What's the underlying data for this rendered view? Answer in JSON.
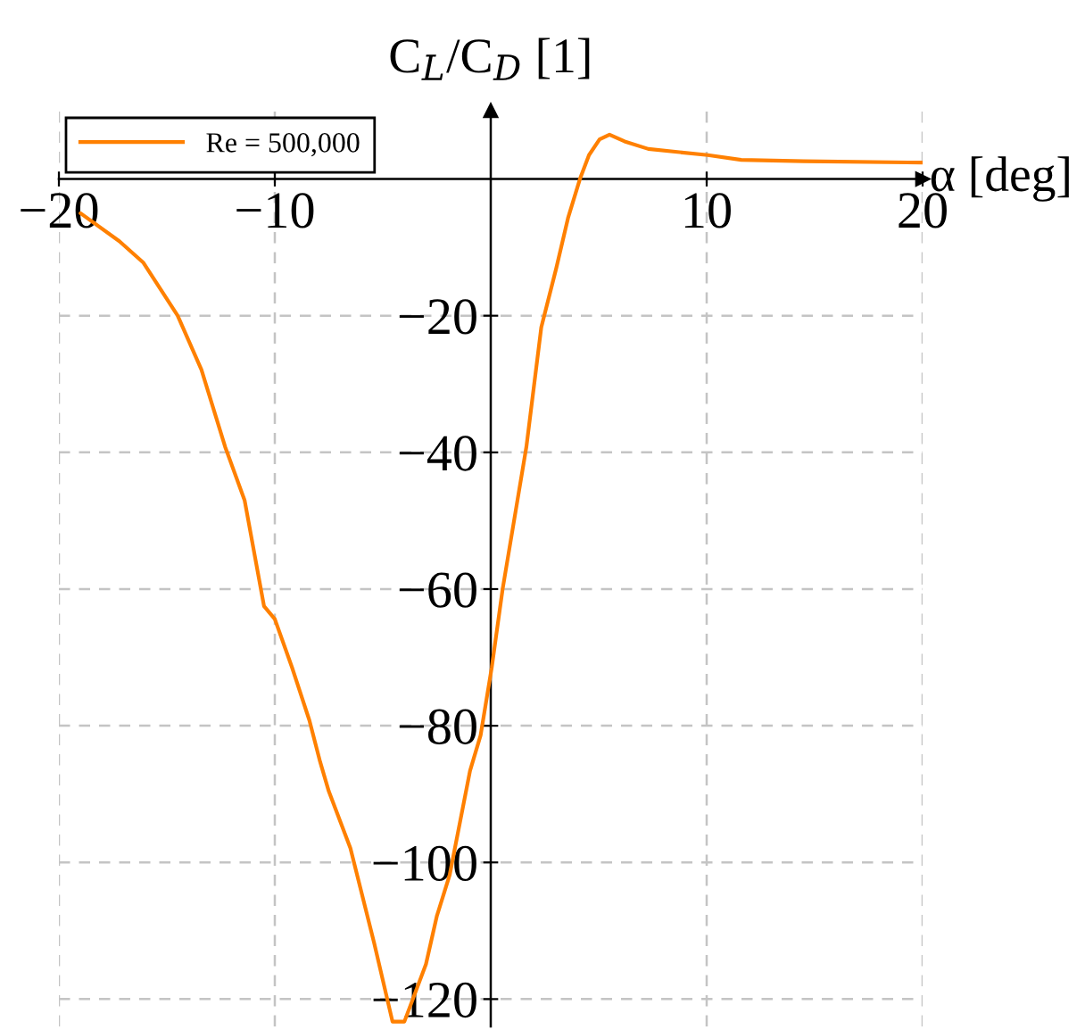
{
  "chart_data": {
    "type": "line",
    "xlabel": "α [deg]",
    "ylabel": "C$_{L}$/C$_{D}$ [1]",
    "series": [
      {
        "name": "Re = 500,000",
        "color": "#ff8000",
        "x": [
          -19.0,
          -17.2,
          -16.1,
          -14.5,
          -13.4,
          -12.3,
          -11.4,
          -10.5,
          -10.0,
          -9.2,
          -8.4,
          -7.9,
          -7.5,
          -6.5,
          -5.4,
          -4.55,
          -4.0,
          -3.0,
          -2.5,
          -1.9,
          -0.96,
          -0.47,
          0.05,
          0.55,
          1.65,
          2.34,
          3.03,
          3.58,
          4.13,
          4.55,
          5.04,
          5.5,
          6.2,
          7.3,
          10.05,
          11.6,
          14.5,
          20.0
        ],
        "values": [
          -5.0,
          -9.1,
          -12.2,
          -20,
          -27.9,
          -39.2,
          -47,
          -62.5,
          -64.4,
          -71.5,
          -79.2,
          -85.3,
          -89.6,
          -97.9,
          -111.8,
          -123.3,
          -123.3,
          -114.9,
          -107.9,
          -101.8,
          -86.6,
          -81.4,
          -71.4,
          -60,
          -39.2,
          -21.7,
          -13.1,
          -5.7,
          0,
          3.5,
          5.8,
          6.5,
          5.5,
          4.4,
          3.5,
          2.8,
          2.6,
          2.4
        ]
      }
    ],
    "xlim": [
      -20,
      20
    ],
    "ylim": [
      -124,
      10
    ],
    "xticks": [
      {
        "value": -20,
        "label": "−20"
      },
      {
        "value": -10,
        "label": "−10"
      },
      {
        "value": 10,
        "label": "10"
      },
      {
        "value": 20,
        "label": "20"
      }
    ],
    "yticks": [
      {
        "value": -120,
        "label": "−120"
      },
      {
        "value": -100,
        "label": "−100"
      },
      {
        "value": -80,
        "label": "−80"
      },
      {
        "value": -60,
        "label": "−60"
      },
      {
        "value": -40,
        "label": "−40"
      },
      {
        "value": -20,
        "label": "−20"
      }
    ],
    "grid": true,
    "legend": "top left",
    "marker": "none",
    "line_style": "solid"
  }
}
